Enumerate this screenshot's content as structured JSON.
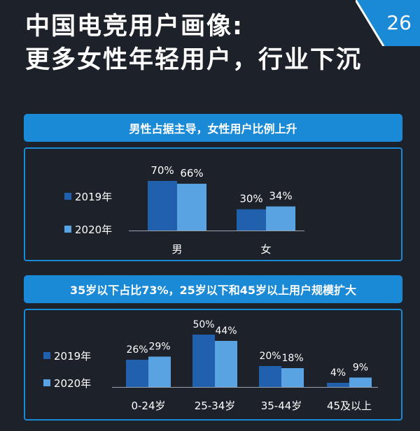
{
  "header": {
    "title_line1": "中国电竞用户画像:",
    "title_line2": "更多女性年轻用户，行业下沉",
    "page_number": "26"
  },
  "colors": {
    "dark_bar": "#2060ac",
    "light_bar": "#5aa3e3",
    "accent": "#1b8ad6",
    "background": "#1d2129"
  },
  "chart_data": [
    {
      "type": "bar",
      "title": "男性占据主导，女性用户比例上升",
      "categories": [
        "男",
        "女"
      ],
      "series": [
        {
          "name": "2019年",
          "values": [
            70,
            30
          ]
        },
        {
          "name": "2020年",
          "values": [
            66,
            34
          ]
        }
      ],
      "value_labels": [
        [
          "70%",
          "30%"
        ],
        [
          "66%",
          "34%"
        ]
      ],
      "ylim": [
        0,
        70
      ],
      "grid": false,
      "legend": "left"
    },
    {
      "type": "bar",
      "title": "35岁以下占比73%，25岁以下和45岁以上用户规模扩大",
      "categories": [
        "0-24岁",
        "25-34岁",
        "35-44岁",
        "45及以上"
      ],
      "series": [
        {
          "name": "2019年",
          "values": [
            26,
            50,
            20,
            4
          ]
        },
        {
          "name": "2020年",
          "values": [
            29,
            44,
            18,
            9
          ]
        }
      ],
      "value_labels": [
        [
          "26%",
          "50%",
          "20%",
          "4%"
        ],
        [
          "29%",
          "44%",
          "18%",
          "9%"
        ]
      ],
      "ylim": [
        0,
        50
      ],
      "grid": false,
      "legend": "left"
    }
  ]
}
